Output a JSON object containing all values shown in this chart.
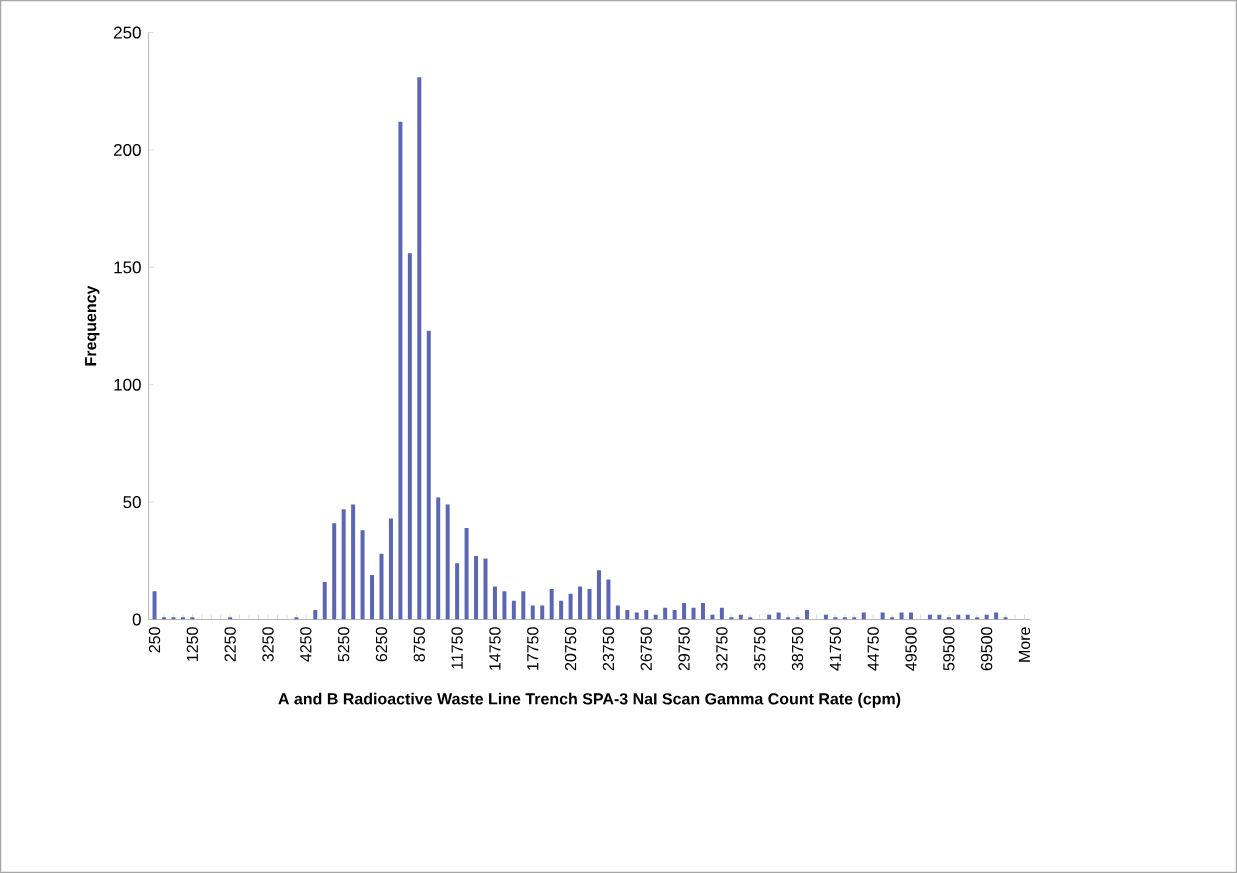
{
  "chart_data": {
    "type": "bar",
    "xlabel": "A and B Radioactive Waste Line Trench SPA-3 NaI Scan Gamma Count Rate (cpm)",
    "ylabel": "Frequency",
    "categories": [
      "250",
      null,
      null,
      null,
      "1250",
      null,
      null,
      null,
      "2250",
      null,
      null,
      null,
      "3250",
      null,
      null,
      null,
      "4250",
      null,
      null,
      null,
      "5250",
      null,
      null,
      null,
      "6250",
      null,
      null,
      null,
      "8750",
      null,
      null,
      null,
      "11750",
      null,
      null,
      null,
      "14750",
      null,
      null,
      null,
      "17750",
      null,
      null,
      null,
      "20750",
      null,
      null,
      null,
      "23750",
      null,
      null,
      null,
      "26750",
      null,
      null,
      null,
      "29750",
      null,
      null,
      null,
      "32750",
      null,
      null,
      null,
      "35750",
      null,
      null,
      null,
      "38750",
      null,
      null,
      null,
      "41750",
      null,
      null,
      null,
      "44750",
      null,
      null,
      null,
      "49500",
      null,
      null,
      null,
      "59500",
      null,
      null,
      null,
      "69500",
      null,
      null,
      null,
      "More"
    ],
    "values": [
      12,
      1,
      1,
      1,
      1,
      0,
      0,
      0,
      1,
      0,
      0,
      0,
      0,
      0,
      0,
      1,
      0,
      4,
      16,
      41,
      47,
      49,
      38,
      19,
      28,
      43,
      212,
      156,
      231,
      123,
      52,
      49,
      24,
      39,
      27,
      26,
      14,
      12,
      8,
      12,
      6,
      6,
      13,
      8,
      11,
      14,
      13,
      21,
      17,
      6,
      4,
      3,
      4,
      2,
      5,
      4,
      7,
      5,
      7,
      2,
      5,
      1,
      2,
      1,
      0,
      2,
      3,
      1,
      1,
      4,
      0,
      2,
      1,
      1,
      1,
      3,
      0,
      3,
      1,
      3,
      3,
      0,
      2,
      2,
      1,
      2,
      2,
      1,
      2,
      3,
      1,
      0,
      0
    ],
    "color": "#5b67b5",
    "ylim": [
      0,
      250
    ],
    "yticks": [
      0,
      50,
      100,
      150,
      200,
      250
    ]
  }
}
